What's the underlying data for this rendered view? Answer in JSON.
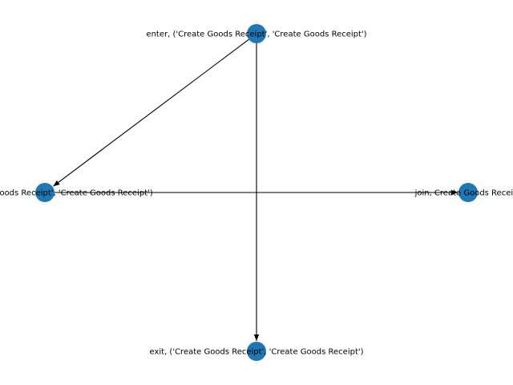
{
  "graph": {
    "node_color": "#1f77b4",
    "edge_color": "#000000",
    "nodes": [
      {
        "id": "enter",
        "label": "enter, ('Create Goods Receipt', 'Create Goods Receipt')"
      },
      {
        "id": "split",
        "label": "split, ('Create Goods Receipt', 'Create Goods Receipt')"
      },
      {
        "id": "join",
        "label": "join, Create Goods Receipt"
      },
      {
        "id": "exit",
        "label": "exit, ('Create Goods Receipt', 'Create Goods Receipt')"
      }
    ],
    "edges": [
      {
        "from": "enter",
        "to": "split"
      },
      {
        "from": "enter",
        "to": "exit"
      },
      {
        "from": "split",
        "to": "join"
      }
    ]
  }
}
